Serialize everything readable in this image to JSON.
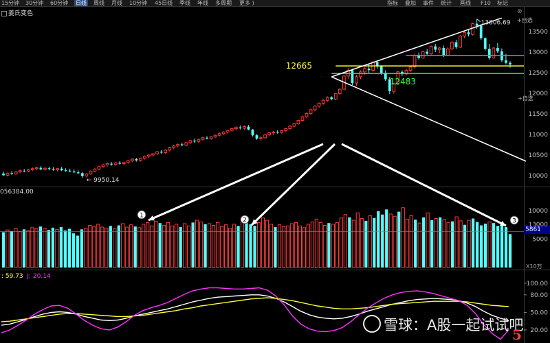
{
  "toolbar": {
    "periods": [
      "15分钟",
      "30分钟",
      "60分钟",
      "日线",
      "周线",
      "月线",
      "10分钟",
      "45日线",
      "季线",
      "年线",
      "多周期",
      "更多 )"
    ],
    "active_period": "日线",
    "right_tabs": [
      "指标",
      "叠加",
      "事件",
      "统计",
      "画线",
      "F10",
      "标记"
    ],
    "right_links": [
      "+自选",
      "+自选"
    ]
  },
  "formula_name": "姜氏变色",
  "colors": {
    "up": "#ff3b3b",
    "down": "#54ffff",
    "k_line": "#ffffff",
    "d_line": "#ffff33",
    "j_line": "#ff33ff",
    "resistance_line": "#ff33ff",
    "support_high_line": "#ffff33",
    "support_low_line": "#33ff33",
    "arrows": "#ffffff"
  },
  "chart_data": [
    {
      "type": "candlestick",
      "title": "",
      "y_ticks": [
        10000,
        10500,
        11000,
        11500,
        12000,
        12500,
        13000,
        13500
      ],
      "ylim": [
        9800,
        13900
      ],
      "annotations": {
        "high_label": "13806.69",
        "high_value": 13806.69,
        "low_label": "9950.14",
        "low_value": 9950.14,
        "level_a_label": "12665",
        "level_a_value": 12665,
        "level_b_label": "12483",
        "level_b_value": 12483,
        "resistance_value": 12920
      },
      "ohlc": [
        [
          10050,
          10100,
          9990,
          10010
        ],
        [
          10010,
          10080,
          9980,
          10060
        ],
        [
          10060,
          10110,
          10020,
          10040
        ],
        [
          10040,
          10110,
          10020,
          10090
        ],
        [
          10090,
          10150,
          10060,
          10120
        ],
        [
          10120,
          10160,
          10080,
          10110
        ],
        [
          10110,
          10160,
          10080,
          10140
        ],
        [
          10140,
          10200,
          10110,
          10170
        ],
        [
          10170,
          10220,
          10130,
          10190
        ],
        [
          10190,
          10230,
          10130,
          10150
        ],
        [
          10150,
          10210,
          10120,
          10180
        ],
        [
          10180,
          10220,
          10130,
          10160
        ],
        [
          10160,
          10210,
          10120,
          10140
        ],
        [
          10140,
          10190,
          10100,
          10170
        ],
        [
          10170,
          10210,
          10110,
          10130
        ],
        [
          10130,
          10180,
          10090,
          10120
        ],
        [
          10120,
          10170,
          10080,
          10100
        ],
        [
          10100,
          10150,
          10060,
          10080
        ],
        [
          10080,
          10130,
          10030,
          10060
        ],
        [
          10060,
          10080,
          9950,
          9990
        ],
        [
          9990,
          10060,
          9960,
          10040
        ],
        [
          10040,
          10130,
          10020,
          10110
        ],
        [
          10110,
          10190,
          10080,
          10160
        ],
        [
          10160,
          10240,
          10130,
          10220
        ],
        [
          10220,
          10290,
          10190,
          10260
        ],
        [
          10260,
          10320,
          10220,
          10290
        ],
        [
          10290,
          10330,
          10240,
          10270
        ],
        [
          10270,
          10330,
          10240,
          10310
        ],
        [
          10310,
          10350,
          10270,
          10290
        ],
        [
          10290,
          10340,
          10250,
          10320
        ],
        [
          10320,
          10380,
          10290,
          10360
        ],
        [
          10360,
          10420,
          10330,
          10400
        ],
        [
          10400,
          10430,
          10340,
          10370
        ],
        [
          10370,
          10440,
          10340,
          10420
        ],
        [
          10420,
          10490,
          10390,
          10470
        ],
        [
          10470,
          10520,
          10430,
          10500
        ],
        [
          10500,
          10550,
          10460,
          10530
        ],
        [
          10530,
          10600,
          10500,
          10580
        ],
        [
          10580,
          10620,
          10530,
          10560
        ],
        [
          10560,
          10640,
          10530,
          10620
        ],
        [
          10620,
          10700,
          10590,
          10680
        ],
        [
          10680,
          10750,
          10640,
          10720
        ],
        [
          10720,
          10780,
          10690,
          10760
        ],
        [
          10760,
          10800,
          10710,
          10740
        ],
        [
          10740,
          10820,
          10710,
          10800
        ],
        [
          10800,
          10870,
          10770,
          10850
        ],
        [
          10850,
          10900,
          10800,
          10830
        ],
        [
          10830,
          10900,
          10800,
          10880
        ],
        [
          10880,
          10950,
          10850,
          10920
        ],
        [
          10920,
          10960,
          10880,
          10900
        ],
        [
          10900,
          10960,
          10870,
          10940
        ],
        [
          10940,
          11000,
          10910,
          10980
        ],
        [
          10980,
          11050,
          10950,
          11020
        ],
        [
          11020,
          11080,
          10990,
          11060
        ],
        [
          11060,
          11120,
          11020,
          11100
        ],
        [
          11100,
          11160,
          11060,
          11140
        ],
        [
          11140,
          11200,
          11100,
          11170
        ],
        [
          11170,
          11220,
          11120,
          11150
        ],
        [
          11150,
          11220,
          11110,
          11190
        ],
        [
          11190,
          11230,
          11100,
          11120
        ],
        [
          11120,
          11130,
          10950,
          10980
        ],
        [
          10980,
          11010,
          10870,
          10900
        ],
        [
          10900,
          10960,
          10850,
          10920
        ],
        [
          10920,
          11010,
          10900,
          10990
        ],
        [
          10990,
          11060,
          10960,
          11040
        ],
        [
          11040,
          11090,
          10990,
          11060
        ],
        [
          11060,
          11100,
          11020,
          11050
        ],
        [
          11050,
          11110,
          11020,
          11090
        ],
        [
          11090,
          11160,
          11060,
          11140
        ],
        [
          11140,
          11230,
          11110,
          11200
        ],
        [
          11200,
          11280,
          11170,
          11260
        ],
        [
          11260,
          11360,
          11230,
          11340
        ],
        [
          11340,
          11460,
          11310,
          11430
        ],
        [
          11430,
          11540,
          11390,
          11510
        ],
        [
          11510,
          11630,
          11480,
          11600
        ],
        [
          11600,
          11710,
          11560,
          11690
        ],
        [
          11690,
          11780,
          11650,
          11760
        ],
        [
          11760,
          11860,
          11720,
          11830
        ],
        [
          11830,
          11930,
          11790,
          11900
        ],
        [
          11900,
          11930,
          11830,
          11860
        ],
        [
          11860,
          12010,
          11830,
          11990
        ],
        [
          11990,
          12120,
          11960,
          12100
        ],
        [
          12100,
          12440,
          12070,
          12420
        ],
        [
          12420,
          12620,
          12350,
          12560
        ],
        [
          12560,
          12600,
          12200,
          12250
        ],
        [
          12250,
          12450,
          12180,
          12400
        ],
        [
          12400,
          12560,
          12340,
          12520
        ],
        [
          12520,
          12640,
          12450,
          12600
        ],
        [
          12600,
          12700,
          12500,
          12560
        ],
        [
          12560,
          12780,
          12520,
          12760
        ],
        [
          12760,
          12800,
          12600,
          12650
        ],
        [
          12650,
          12680,
          12450,
          12500
        ],
        [
          12500,
          12560,
          12300,
          12340
        ],
        [
          12340,
          12400,
          11980,
          12050
        ],
        [
          12050,
          12260,
          11990,
          12240
        ],
        [
          12240,
          12550,
          12200,
          12520
        ],
        [
          12520,
          12560,
          12420,
          12470
        ],
        [
          12470,
          12600,
          12440,
          12560
        ],
        [
          12560,
          12680,
          12520,
          12640
        ],
        [
          12640,
          12960,
          12600,
          12920
        ],
        [
          12920,
          12990,
          12820,
          12860
        ],
        [
          12860,
          13040,
          12840,
          13010
        ],
        [
          13010,
          13080,
          12920,
          12960
        ],
        [
          12960,
          13160,
          12930,
          13140
        ],
        [
          13140,
          13200,
          13000,
          13060
        ],
        [
          13060,
          13130,
          12980,
          13100
        ],
        [
          13100,
          13160,
          12880,
          12920
        ],
        [
          12920,
          13120,
          12900,
          13080
        ],
        [
          13080,
          13280,
          13040,
          13240
        ],
        [
          13240,
          13300,
          13080,
          13120
        ],
        [
          13120,
          13420,
          13100,
          13390
        ],
        [
          13390,
          13520,
          13340,
          13480
        ],
        [
          13480,
          13560,
          13380,
          13430
        ],
        [
          13430,
          13720,
          13400,
          13690
        ],
        [
          13690,
          13806,
          13560,
          13640
        ],
        [
          13640,
          13680,
          13300,
          13340
        ],
        [
          13340,
          13360,
          13040,
          13080
        ],
        [
          13080,
          13200,
          12820,
          12860
        ],
        [
          12860,
          13120,
          12840,
          13100
        ],
        [
          13100,
          13220,
          12980,
          13020
        ],
        [
          13020,
          13090,
          12760,
          12800
        ],
        [
          12800,
          12960,
          12700,
          12740
        ],
        [
          12740,
          12780,
          12620,
          12700
        ]
      ]
    },
    {
      "type": "bar",
      "title": "",
      "value_label": "056384.00",
      "y_ticks": [
        5000,
        10000
      ],
      "extra_tick_labels": [
        "13000",
        "5000"
      ],
      "current_value_label": "5861",
      "unit_label": "X10万",
      "volumes": [
        6200,
        6600,
        6400,
        6800,
        6300,
        6700,
        6500,
        7000,
        6800,
        7200,
        6900,
        6600,
        7000,
        6700,
        7100,
        6500,
        6800,
        6000,
        5600,
        6700,
        6900,
        7400,
        7200,
        7600,
        7100,
        6900,
        7300,
        6800,
        7400,
        7700,
        7100,
        7500,
        7200,
        7000,
        7600,
        7900,
        7300,
        8100,
        7800,
        7400,
        7900,
        7300,
        7600,
        7100,
        7700,
        7300,
        7900,
        8300,
        8000,
        7600,
        7700,
        7400,
        7900,
        7200,
        7500,
        6900,
        7600,
        7300,
        8100,
        8500,
        7600,
        7300,
        7900,
        8700,
        8300,
        7600,
        7100,
        7500,
        7200,
        7300,
        7700,
        7900,
        7300,
        7000,
        7600,
        8000,
        8500,
        7900,
        7400,
        7800,
        7600,
        7900,
        8700,
        9300,
        8800,
        8300,
        9600,
        8600,
        8200,
        9100,
        8700,
        9900,
        9300,
        10200,
        9400,
        9000,
        9800,
        10500,
        8500,
        9100,
        8400,
        7800,
        8800,
        9600,
        8300,
        8600,
        8800,
        8400,
        7900,
        8100,
        8900,
        8200,
        7500,
        8300,
        8600,
        8000,
        7400,
        7700,
        8000,
        7800,
        7300,
        7600,
        7100,
        5861
      ],
      "markers": [
        "1",
        "2",
        "3"
      ]
    },
    {
      "type": "line",
      "title": "",
      "legend_items": [
        {
          "label": ": 59.73",
          "color": "#ffff33"
        },
        {
          "label": "J: 20.14",
          "color": "#ff33ff"
        }
      ],
      "y_ticks": [
        20,
        50,
        80,
        100
      ],
      "y_tick_labels": [
        "20.00",
        "50.00",
        "80.00",
        "100.00"
      ],
      "ylim": [
        0,
        115
      ],
      "series": [
        {
          "key": "K",
          "color": "#ffffff",
          "values": [
            28,
            30,
            34,
            38,
            43,
            47,
            50,
            51,
            50,
            47,
            43,
            40,
            37,
            36,
            37,
            40,
            44,
            47,
            50,
            53,
            56,
            60,
            64,
            68,
            71,
            74,
            76,
            77,
            78,
            79,
            80,
            80,
            78,
            74,
            68,
            60,
            52,
            46,
            42,
            40,
            39,
            40,
            43,
            47,
            52,
            56,
            60,
            64,
            67,
            70,
            72,
            73,
            74,
            73,
            72,
            70,
            66,
            60,
            52,
            45,
            40,
            36
          ]
        },
        {
          "key": "D",
          "color": "#ffff33",
          "values": [
            34,
            35,
            37,
            39,
            41,
            43,
            45,
            47,
            48,
            48,
            47,
            46,
            45,
            44,
            43,
            43,
            44,
            45,
            47,
            49,
            51,
            53,
            56,
            58,
            61,
            63,
            65,
            67,
            69,
            71,
            73,
            74,
            75,
            74,
            72,
            70,
            67,
            64,
            61,
            59,
            57,
            56,
            56,
            57,
            58,
            60,
            62,
            64,
            65,
            66,
            67,
            68,
            69,
            69,
            69,
            69,
            68,
            66,
            64,
            62,
            61,
            59.73
          ]
        },
        {
          "key": "J",
          "color": "#ff33ff",
          "values": [
            15,
            20,
            28,
            37,
            47,
            55,
            61,
            62,
            57,
            47,
            36,
            28,
            22,
            20,
            25,
            34,
            45,
            53,
            58,
            62,
            67,
            74,
            81,
            87,
            90,
            92,
            92,
            91,
            90,
            90,
            91,
            92,
            88,
            78,
            63,
            44,
            30,
            22,
            18,
            17,
            19,
            24,
            34,
            46,
            57,
            66,
            74,
            80,
            84,
            86,
            87,
            85,
            82,
            78,
            74,
            70,
            62,
            48,
            29,
            14,
            4,
            20.14
          ]
        }
      ]
    }
  ],
  "watermark": {
    "text": "雪球：A股一起试试吧"
  },
  "corner_number": "5"
}
